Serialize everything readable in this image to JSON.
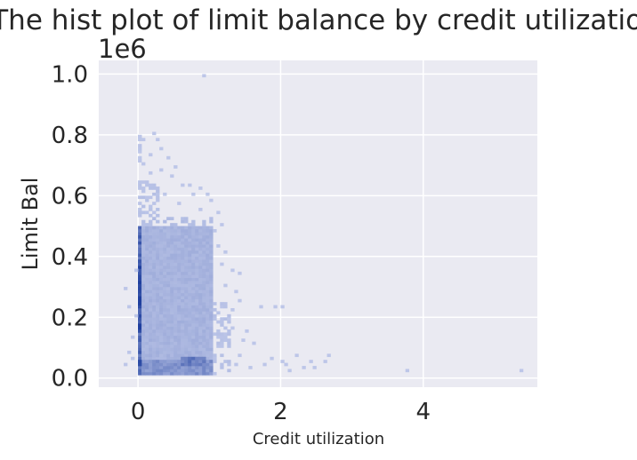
{
  "chart_data": {
    "type": "heatmap",
    "kind": "2d-histogram",
    "title": "The hist plot of limit balance by credit utilization",
    "xlabel": "Credit utilization",
    "ylabel": "Limit Bal",
    "y_offset_label": "1e6",
    "xlim": [
      -0.55,
      5.6
    ],
    "ylim": [
      -30000,
      1045000
    ],
    "xticks": [
      {
        "value": 0,
        "label": "0"
      },
      {
        "value": 2,
        "label": "2"
      },
      {
        "value": 4,
        "label": "4"
      }
    ],
    "yticks": [
      {
        "value": 0,
        "label": "0.0"
      },
      {
        "value": 200000,
        "label": "0.2"
      },
      {
        "value": 400000,
        "label": "0.4"
      },
      {
        "value": 600000,
        "label": "0.6"
      },
      {
        "value": 800000,
        "label": "0.8"
      },
      {
        "value": 1000000,
        "label": "1.0"
      }
    ],
    "grid": true,
    "background_color": "#eaeaf2",
    "grid_color": "#ffffff",
    "color_light": "#c5cdec",
    "color_dark": "#1f3f9e",
    "bin_width_x": 0.05,
    "bin_width_y": 10000,
    "density_regions": [
      {
        "x0": 0.0,
        "x1": 0.05,
        "y0": 10000,
        "y1": 500000,
        "level": 0.7
      },
      {
        "x0": 0.0,
        "x1": 0.05,
        "y0": 150000,
        "y1": 390000,
        "level": 0.95
      },
      {
        "x0": 0.05,
        "x1": 1.05,
        "y0": 10000,
        "y1": 500000,
        "level": 0.18
      },
      {
        "x0": 0.05,
        "x1": 1.05,
        "y0": 10000,
        "y1": 60000,
        "level": 0.4
      },
      {
        "x0": 0.05,
        "x1": 1.05,
        "y0": 500000,
        "y1": 530000,
        "level": 0.12
      },
      {
        "x0": 0.6,
        "x1": 0.95,
        "y0": 40000,
        "y1": 70000,
        "level": 0.55
      },
      {
        "x0": 0.0,
        "x1": 0.05,
        "y0": 40000,
        "y1": 60000,
        "level": 0.9
      },
      {
        "x0": 1.05,
        "x1": 1.3,
        "y0": 10000,
        "y1": 250000,
        "level": 0.08
      },
      {
        "x0": 0.0,
        "x1": 0.3,
        "y0": 530000,
        "y1": 650000,
        "level": 0.08
      },
      {
        "x0": 0.0,
        "x1": 0.05,
        "y0": 650000,
        "y1": 800000,
        "level": 0.06
      }
    ],
    "sparse_cells": [
      [
        0.9,
        990000
      ],
      [
        0.0,
        790000
      ],
      [
        0.05,
        780000
      ],
      [
        0.25,
        780000
      ],
      [
        0.3,
        750000
      ],
      [
        0.15,
        730000
      ],
      [
        0.4,
        720000
      ],
      [
        0.5,
        690000
      ],
      [
        0.6,
        630000
      ],
      [
        0.7,
        630000
      ],
      [
        0.85,
        620000
      ],
      [
        0.3,
        680000
      ],
      [
        0.45,
        660000
      ],
      [
        0.05,
        700000
      ],
      [
        0.15,
        670000
      ],
      [
        0.75,
        600000
      ],
      [
        0.95,
        600000
      ],
      [
        0.55,
        570000
      ],
      [
        1.1,
        540000
      ],
      [
        1.0,
        580000
      ],
      [
        1.05,
        480000
      ],
      [
        1.1,
        430000
      ],
      [
        1.2,
        410000
      ],
      [
        1.3,
        350000
      ],
      [
        1.4,
        340000
      ],
      [
        1.2,
        300000
      ],
      [
        1.35,
        280000
      ],
      [
        1.15,
        370000
      ],
      [
        1.4,
        250000
      ],
      [
        1.3,
        220000
      ],
      [
        1.7,
        230000
      ],
      [
        1.9,
        230000
      ],
      [
        2.0,
        230000
      ],
      [
        1.5,
        150000
      ],
      [
        1.45,
        120000
      ],
      [
        1.6,
        110000
      ],
      [
        1.4,
        70000
      ],
      [
        1.35,
        40000
      ],
      [
        1.55,
        30000
      ],
      [
        1.75,
        40000
      ],
      [
        1.85,
        60000
      ],
      [
        2.05,
        40000
      ],
      [
        2.2,
        70000
      ],
      [
        2.1,
        20000
      ],
      [
        2.3,
        30000
      ],
      [
        2.45,
        30000
      ],
      [
        2.6,
        50000
      ],
      [
        2.65,
        70000
      ],
      [
        2.4,
        50000
      ],
      [
        2.0,
        50000
      ],
      [
        1.3,
        160000
      ],
      [
        1.25,
        190000
      ],
      [
        3.75,
        20000
      ],
      [
        5.35,
        20000
      ],
      [
        -0.2,
        290000
      ],
      [
        -0.15,
        230000
      ],
      [
        -0.15,
        80000
      ],
      [
        -0.1,
        130000
      ],
      [
        -0.2,
        40000
      ],
      [
        -0.05,
        200000
      ],
      [
        -0.05,
        350000
      ],
      [
        -0.1,
        60000
      ],
      [
        1.15,
        500000
      ],
      [
        0.2,
        800000
      ],
      [
        0.35,
        600000
      ],
      [
        0.85,
        550000
      ]
    ]
  }
}
